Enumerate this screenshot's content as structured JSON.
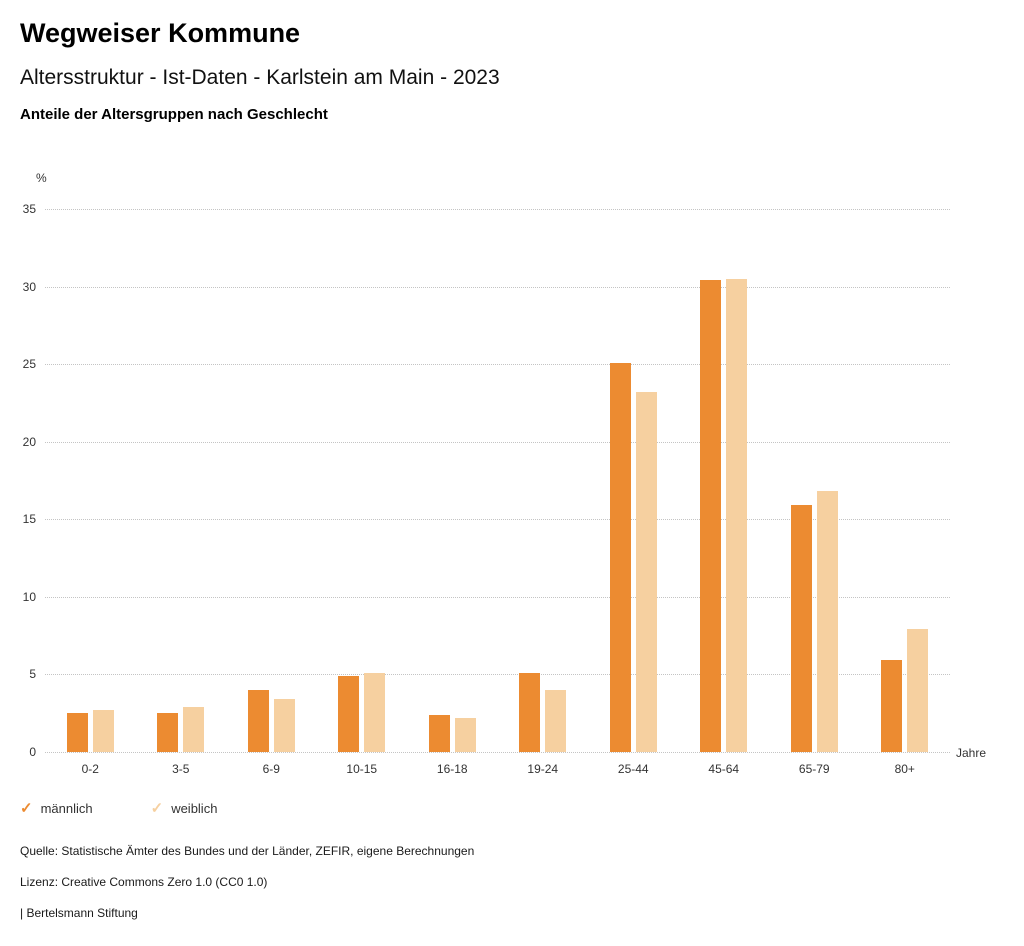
{
  "header": {
    "title": "Wegweiser Kommune",
    "subtitle": "Altersstruktur - Ist-Daten - Karlstein am Main - 2023",
    "chart_heading": "Anteile der Altersgruppen nach Geschlecht"
  },
  "chart_data": {
    "type": "bar",
    "title": "Anteile der Altersgruppen nach Geschlecht",
    "categories": [
      "0-2",
      "3-5",
      "6-9",
      "10-15",
      "16-18",
      "19-24",
      "25-44",
      "45-64",
      "65-79",
      "80+"
    ],
    "series": [
      {
        "name": "männlich",
        "color": "#EC8B31",
        "values": [
          2.5,
          2.5,
          4.0,
          4.9,
          2.4,
          5.1,
          25.1,
          30.4,
          15.9,
          5.9
        ]
      },
      {
        "name": "weiblich",
        "color": "#F6D0A0",
        "values": [
          2.7,
          2.9,
          3.4,
          5.1,
          2.2,
          4.0,
          23.2,
          30.5,
          16.8,
          7.9
        ]
      }
    ],
    "xlabel": "Jahre",
    "ylabel": "%",
    "ylim": [
      0,
      35
    ],
    "yticks": [
      0,
      5,
      10,
      15,
      20,
      25,
      30,
      35
    ],
    "grid": true,
    "legend_position": "bottom"
  },
  "legend": {
    "checkmark": "✓",
    "items": [
      {
        "label": "männlich",
        "color": "#EC8B31"
      },
      {
        "label": "weiblich",
        "color": "#F6D0A0"
      }
    ]
  },
  "footer": {
    "source": "Quelle: Statistische Ämter des Bundes und der Länder, ZEFIR, eigene Berechnungen",
    "license": "Lizenz: Creative Commons Zero 1.0 (CC0 1.0)",
    "attribution": "| Bertelsmann Stiftung"
  }
}
